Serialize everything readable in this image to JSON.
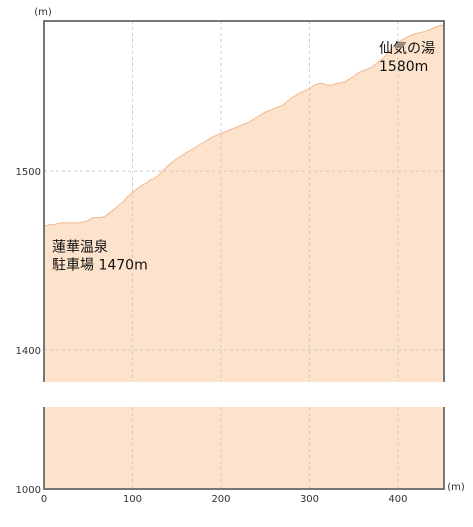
{
  "chart_data": {
    "type": "area",
    "y_unit": "(m)",
    "x_unit": "(m)",
    "x_ticks": [
      0,
      100,
      200,
      300,
      400
    ],
    "y_ticks_upper": [
      1400,
      1500
    ],
    "y_ticks_lower": [
      1000
    ],
    "xlim": [
      0,
      452
    ],
    "upper_ylim": [
      1382,
      1584
    ],
    "lower_ylim": [
      1000,
      1048
    ],
    "axis_break": true,
    "grid": true,
    "colors": {
      "fill": "#fde2cc",
      "line": "#f3b98e",
      "frame": "#777777",
      "grid": "#cccccc"
    },
    "annotations": [
      {
        "lines": [
          "蓮華温泉",
          "駐車場 1470m"
        ],
        "x": 0,
        "y": 1470,
        "anchor": "below-right"
      },
      {
        "lines": [
          "仙気の湯",
          "1580m"
        ],
        "x": 452,
        "y": 1580,
        "anchor": "below-left"
      }
    ],
    "x": [
      0,
      5,
      10,
      20,
      30,
      40,
      48,
      52,
      55,
      60,
      65,
      70,
      75,
      80,
      85,
      90,
      95,
      100,
      105,
      110,
      115,
      120,
      125,
      130,
      140,
      150,
      160,
      170,
      180,
      190,
      200,
      210,
      220,
      230,
      240,
      250,
      260,
      270,
      275,
      280,
      290,
      300,
      305,
      310,
      315,
      320,
      325,
      330,
      340,
      350,
      355,
      360,
      370,
      380,
      385,
      390,
      395,
      400,
      410,
      420,
      430,
      440,
      445,
      452
    ],
    "y": [
      1469,
      1470,
      1470,
      1471,
      1471,
      1471,
      1472,
      1473,
      1474,
      1474,
      1474,
      1475,
      1477,
      1479,
      1481,
      1483,
      1486,
      1488,
      1490,
      1492,
      1493,
      1495,
      1496,
      1498,
      1503,
      1507,
      1510,
      1513,
      1516,
      1519,
      1521,
      1523,
      1525,
      1527,
      1530,
      1533,
      1535,
      1537,
      1539,
      1541,
      1544,
      1546,
      1548,
      1549,
      1549,
      1548,
      1548,
      1549,
      1550,
      1553,
      1555,
      1556,
      1558,
      1562,
      1564,
      1567,
      1570,
      1572,
      1575,
      1577,
      1578,
      1580,
      1581,
      1582
    ]
  }
}
